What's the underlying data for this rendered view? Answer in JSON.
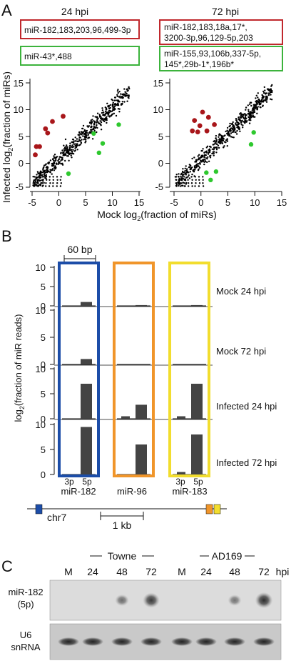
{
  "panel_a": {
    "letter": "A",
    "left_title": "24 hpi",
    "right_title": "72 hpi",
    "left_red_box": "miR-182,183,203,96,499-3p",
    "left_green_box": "miR-43*,488",
    "right_red_box_lines": [
      "miR-182,183,18a,17*,",
      "3200-3p,96,129-5p,203"
    ],
    "right_green_box_lines": [
      "miR-155,93,106b,337-5p,",
      "145*,29b-1*,196b*"
    ],
    "ylabel_parts": [
      "Infected log",
      "2",
      "(fraction of miRs)"
    ],
    "xlabel_parts": [
      "Mock log",
      "2",
      "(fraction of miRs)"
    ],
    "y_ticks": [
      "-5",
      "0",
      "5",
      "10",
      "15"
    ],
    "x_ticks": [
      "-5",
      "0",
      "5",
      "10",
      "15"
    ],
    "colors": {
      "red_box": "#c0282d",
      "green_box": "#3cb33c",
      "red_point": "#a8161a",
      "green_point": "#2ec82e"
    },
    "chart_data": [
      {
        "type": "scatter",
        "title": "24 hpi",
        "xlim": [
          -5,
          15
        ],
        "ylim": [
          -5,
          15
        ],
        "red_points": [
          [
            -4.2,
            2.8
          ],
          [
            -3.6,
            2.8
          ],
          [
            -4.4,
            1.2
          ],
          [
            -2.5,
            6.2
          ],
          [
            -2.1,
            5.4
          ],
          [
            0.8,
            8.6
          ],
          [
            -1.2,
            7.6
          ]
        ],
        "green_points": [
          [
            1.8,
            -2.4
          ],
          [
            6.5,
            5.3
          ],
          [
            7.5,
            1.6
          ],
          [
            11.2,
            7.0
          ],
          [
            8.2,
            3.4
          ]
        ]
      },
      {
        "type": "scatter",
        "title": "72 hpi",
        "xlim": [
          -5,
          15
        ],
        "ylim": [
          -5,
          15
        ],
        "red_points": [
          [
            -1.2,
            7.8
          ],
          [
            -0.2,
            6.8
          ],
          [
            -1.6,
            5.8
          ],
          [
            -0.6,
            5.6
          ],
          [
            1.1,
            5.8
          ],
          [
            1.4,
            8.4
          ],
          [
            0.3,
            9.4
          ],
          [
            2.5,
            7.0
          ]
        ],
        "green_points": [
          [
            1.0,
            -2.2
          ],
          [
            2.8,
            -2.0
          ],
          [
            1.8,
            -3.6
          ],
          [
            9.8,
            5.5
          ],
          [
            9.3,
            3.2
          ]
        ]
      }
    ]
  },
  "panel_b": {
    "letter": "B",
    "scale_label": "60 bp",
    "y_label_parts": [
      "log",
      "2",
      "(fraction of miR reads)"
    ],
    "y_ticks": [
      "10",
      "5",
      "0"
    ],
    "track_labels": [
      "Mock 24 hpi",
      "Mock 72 hpi",
      "Infected 24 hpi",
      "Infected 72 hpi"
    ],
    "genes": [
      {
        "name": "miR-182",
        "color": "#1c4da8",
        "bars_3p": [
          0,
          0,
          0,
          0
        ],
        "bars_5p": [
          1,
          1,
          7,
          9.5
        ],
        "show_arm_labels": true
      },
      {
        "name": "miR-96",
        "color": "#f0952a",
        "bars_3p": [
          0,
          0,
          0.5,
          0
        ],
        "bars_5p": [
          0.2,
          0,
          2.8,
          6
        ],
        "show_arm_labels": false
      },
      {
        "name": "miR-183",
        "color": "#f2dd2e",
        "bars_3p": [
          0,
          0,
          0.5,
          0.5
        ],
        "bars_5p": [
          0.2,
          0,
          7,
          8
        ],
        "show_arm_labels": true
      }
    ],
    "arm_labels": [
      "3p",
      "5p"
    ],
    "chr_label": "chr7",
    "kb_label": "1 kb"
  },
  "panel_c": {
    "letter": "C",
    "group_labels": [
      "Towne",
      "AD169"
    ],
    "lane_labels": [
      "M",
      "24",
      "48",
      "72",
      "M",
      "24",
      "48",
      "72"
    ],
    "hpi_label": "hpi",
    "row_labels": [
      [
        "miR-182",
        "(5p)"
      ],
      [
        "U6",
        "snRNA"
      ]
    ],
    "mir182_signal": [
      0,
      0,
      0.35,
      0.75,
      0,
      0,
      0.3,
      0.85
    ],
    "u6_signal": [
      1,
      1,
      1,
      1,
      1,
      1,
      1,
      1
    ]
  }
}
